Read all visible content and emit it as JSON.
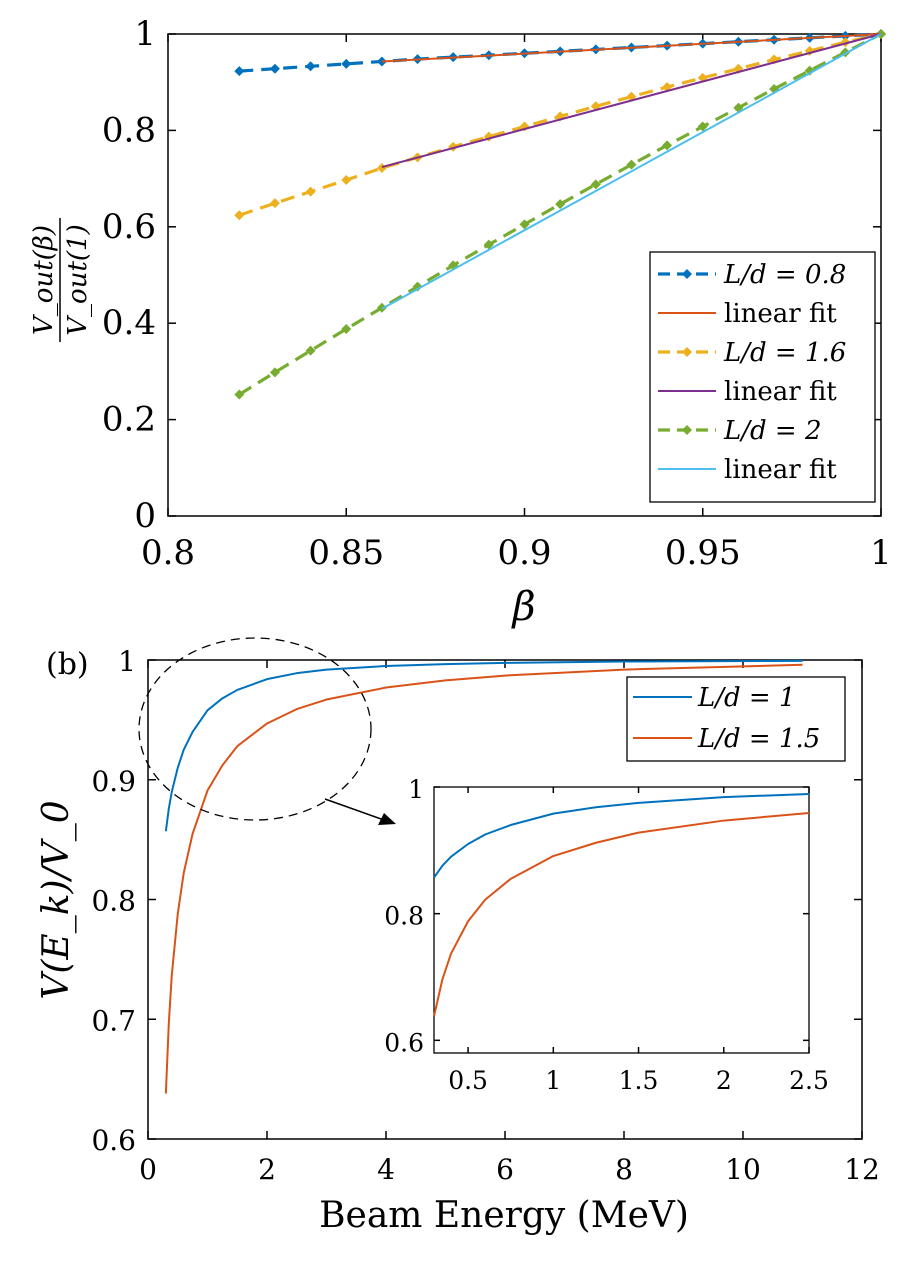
{
  "chart_data": [
    {
      "type": "line",
      "panel": "top",
      "xlabel": "β",
      "ylabel_num": "V_out(β)",
      "ylabel_den": "V_out(1)",
      "xlim": [
        0.8,
        1.0
      ],
      "ylim": [
        0,
        1
      ],
      "xticks": [
        "0.8",
        "0.85",
        "0.9",
        "0.95",
        "1"
      ],
      "yticks": [
        "0",
        "0.2",
        "0.4",
        "0.6",
        "0.8",
        "1"
      ],
      "x": [
        0.82,
        0.83,
        0.84,
        0.85,
        0.86,
        0.87,
        0.88,
        0.89,
        0.9,
        0.91,
        0.92,
        0.93,
        0.94,
        0.95,
        0.96,
        0.97,
        0.98,
        0.99,
        1.0
      ],
      "series": [
        {
          "name": "L/d = 0.8",
          "kind": "data",
          "color": "#0072BD",
          "values": [
            0.923,
            0.928,
            0.933,
            0.938,
            0.943,
            0.948,
            0.952,
            0.956,
            0.96,
            0.964,
            0.968,
            0.972,
            0.976,
            0.98,
            0.984,
            0.988,
            0.992,
            0.996,
            1.0
          ]
        },
        {
          "name": "linear fit",
          "kind": "fit",
          "color": "#D95319",
          "fit_x": [
            0.86,
            1.0
          ],
          "fit_y": [
            0.943,
            1.0
          ]
        },
        {
          "name": "L/d = 1.6",
          "kind": "data",
          "color": "#EDB120",
          "values": [
            0.624,
            0.649,
            0.673,
            0.697,
            0.722,
            0.744,
            0.766,
            0.787,
            0.808,
            0.829,
            0.85,
            0.87,
            0.89,
            0.909,
            0.928,
            0.947,
            0.965,
            0.983,
            1.0
          ]
        },
        {
          "name": "linear fit",
          "kind": "fit",
          "color": "#7E2F8E",
          "fit_x": [
            0.86,
            1.0
          ],
          "fit_y": [
            0.724,
            1.0
          ]
        },
        {
          "name": "L/d = 2",
          "kind": "data",
          "color": "#77AC30",
          "values": [
            0.252,
            0.298,
            0.343,
            0.388,
            0.432,
            0.476,
            0.52,
            0.563,
            0.605,
            0.647,
            0.688,
            0.729,
            0.769,
            0.808,
            0.847,
            0.886,
            0.924,
            0.962,
            1.0
          ]
        },
        {
          "name": "linear fit",
          "kind": "fit",
          "color": "#4DBEEE",
          "fit_x": [
            0.86,
            1.0
          ],
          "fit_y": [
            0.43,
            1.0
          ]
        }
      ],
      "legend": "bottom-right"
    },
    {
      "type": "line",
      "panel": "bottom",
      "label": "(b)",
      "xlabel": "Beam Energy (MeV)",
      "ylabel": "V(E_k)/V_0",
      "xlim": [
        0,
        12
      ],
      "ylim": [
        0.6,
        1
      ],
      "xticks": [
        "0",
        "2",
        "4",
        "6",
        "8",
        "10",
        "12"
      ],
      "yticks": [
        "0.6",
        "0.7",
        "0.8",
        "0.9",
        "1"
      ],
      "x": [
        0.3,
        0.35,
        0.4,
        0.5,
        0.6,
        0.75,
        1.0,
        1.25,
        1.5,
        2.0,
        2.5,
        3.0,
        4.0,
        5.0,
        6.0,
        8.0,
        11.0
      ],
      "series": [
        {
          "name": "L/d = 1",
          "color": "#0072BD",
          "values": [
            0.857,
            0.876,
            0.89,
            0.91,
            0.925,
            0.94,
            0.958,
            0.968,
            0.975,
            0.984,
            0.989,
            0.992,
            0.995,
            0.9966,
            0.9976,
            0.9987,
            0.9993
          ]
        },
        {
          "name": "L/d = 1.5",
          "color": "#D95319",
          "values": [
            0.638,
            0.697,
            0.737,
            0.788,
            0.822,
            0.855,
            0.891,
            0.912,
            0.928,
            0.947,
            0.959,
            0.967,
            0.977,
            0.983,
            0.987,
            0.992,
            0.996
          ]
        }
      ],
      "legend": "top-right",
      "inset": {
        "xlim": [
          0.3,
          2.5
        ],
        "ylim": [
          0.58,
          1
        ],
        "xticks": [
          "0.5",
          "1",
          "1.5",
          "2",
          "2.5"
        ],
        "yticks": [
          "0.6",
          "0.8",
          "1"
        ]
      }
    }
  ]
}
